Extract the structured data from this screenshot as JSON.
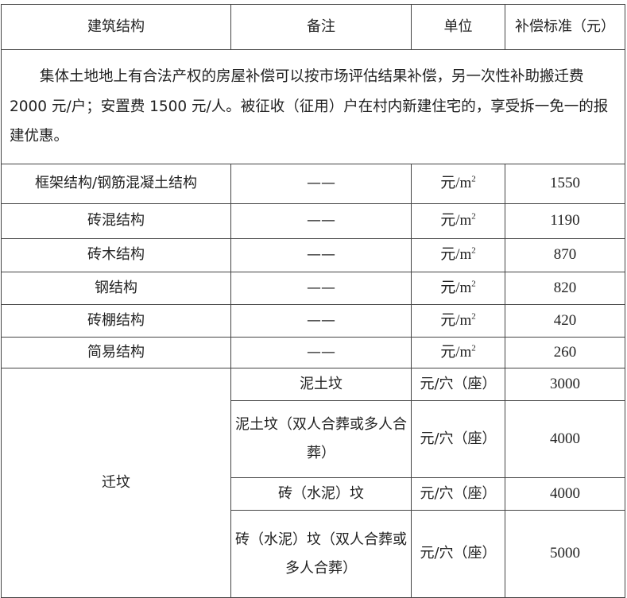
{
  "header": {
    "col1": "建筑结构",
    "col2": "备注",
    "col3": "单位",
    "col4": "补偿标准（元）"
  },
  "note": "集体土地地上有合法产权的房屋补偿可以按市场评估结果补偿，另一次性补助搬迁费 2000 元/户；安置费 1500 元/人。被征收（征用）户在村内新建住宅的，享受拆一免一的报建优惠。",
  "rows": [
    {
      "structure": "框架结构/钢筋混凝土结构",
      "remark": "——",
      "unit": "元/m",
      "unit_sup": "2",
      "value": "1550"
    },
    {
      "structure": "砖混结构",
      "remark": "——",
      "unit": "元/m",
      "unit_sup": "2",
      "value": "1190"
    },
    {
      "structure": "砖木结构",
      "remark": "——",
      "unit": "元/m",
      "unit_sup": "2",
      "value": "870"
    },
    {
      "structure": "钢结构",
      "remark": "——",
      "unit": "元/m",
      "unit_sup": "2",
      "value": "820"
    },
    {
      "structure": "砖棚结构",
      "remark": "——",
      "unit": "元/m",
      "unit_sup": "2",
      "value": "420"
    },
    {
      "structure": "简易结构",
      "remark": "——",
      "unit": "元/m",
      "unit_sup": "2",
      "value": "260"
    }
  ],
  "grave": {
    "label": "迁坟",
    "items": [
      {
        "remark": "泥土坟",
        "unit": "元/穴（座）",
        "value": "3000"
      },
      {
        "remark": "泥土坟（双人合葬或多人合葬）",
        "unit": "元/穴（座）",
        "value": "4000"
      },
      {
        "remark": "砖（水泥）坟",
        "unit": "元/穴（座）",
        "value": "4000"
      },
      {
        "remark": "砖（水泥）坟（双人合葬或多人合葬）",
        "unit": "元/穴（座）",
        "value": "5000"
      }
    ]
  }
}
